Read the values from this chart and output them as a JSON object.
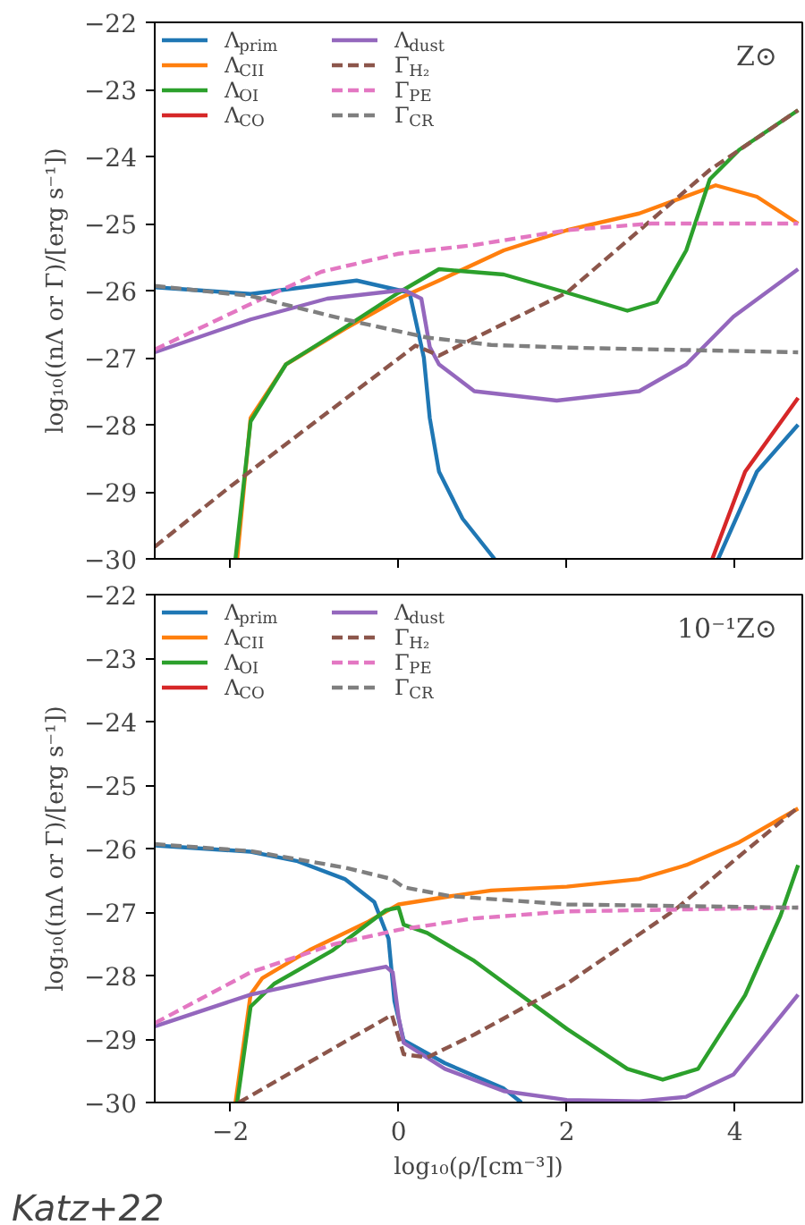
{
  "chart_data": [
    {
      "type": "line",
      "ylabel": "log₁₀((nΛ or Γ)/[erg s⁻¹])",
      "annotations": [
        "Z⊙"
      ],
      "xlim": [
        -2.9,
        4.8
      ],
      "ylim": [
        -30,
        -22
      ],
      "xticks": [
        -2,
        0,
        2,
        4
      ],
      "yticks": [
        -30,
        -29,
        -28,
        -27,
        -26,
        -25,
        -24,
        -23,
        -22
      ],
      "tick_labels": "y",
      "legend": "top left",
      "grid": false,
      "series": [
        {
          "name": "Λ$_{prim}$",
          "color": "#1f77b4",
          "line_style": "solid",
          "x": [
            -2.9,
            -1.76,
            -0.5,
            0.13,
            0.3,
            0.37,
            0.48,
            0.76,
            1.14,
            null,
            3.8,
            4.26,
            4.75
          ],
          "values": [
            -25.95,
            -26.05,
            -25.85,
            -26.03,
            -27.0,
            -27.9,
            -28.7,
            -29.4,
            -30.0,
            null,
            -30.0,
            -28.7,
            -28.0
          ]
        },
        {
          "name": "Λ$_{CII}$",
          "color": "#ff7f0e",
          "line_style": "solid",
          "x": [
            -1.92,
            -1.76,
            -1.34,
            -0.64,
            0,
            0.48,
            1.25,
            2,
            2.86,
            3.77,
            4.26,
            4.75
          ],
          "values": [
            -30.0,
            -27.9,
            -27.1,
            -26.57,
            -26.12,
            -25.85,
            -25.4,
            -25.1,
            -24.85,
            -24.43,
            -24.6,
            -25.0
          ]
        },
        {
          "name": "Λ$_{OI}$",
          "color": "#2ca02c",
          "line_style": "solid",
          "x": [
            -1.94,
            -1.76,
            -1.34,
            -0.64,
            0,
            0.48,
            1.25,
            2,
            2.72,
            3.07,
            3.42,
            3.7,
            4.05,
            4.75
          ],
          "values": [
            -30.0,
            -27.95,
            -27.1,
            -26.55,
            -26.03,
            -25.68,
            -25.76,
            -26.03,
            -26.3,
            -26.17,
            -25.4,
            -24.34,
            -23.9,
            -23.31
          ]
        },
        {
          "name": "Λ$_{CO}$",
          "color": "#d62728",
          "line_style": "solid",
          "x": [
            3.73,
            4.12,
            4.75
          ],
          "values": [
            -30.0,
            -28.7,
            -27.6
          ]
        },
        {
          "name": "Λ$_{dust}$",
          "color": "#9467bd",
          "line_style": "solid",
          "x": [
            -2.9,
            -1.76,
            -0.85,
            0.06,
            0.27,
            0.37,
            0.48,
            0.9,
            1.88,
            2.86,
            3.42,
            3.98,
            4.75
          ],
          "values": [
            -26.92,
            -26.43,
            -26.12,
            -25.99,
            -26.12,
            -26.84,
            -27.1,
            -27.5,
            -27.64,
            -27.5,
            -27.1,
            -26.39,
            -25.68
          ]
        },
        {
          "name": "Γ$_{H₂}$",
          "color": "#8c564b",
          "line_style": "dashed",
          "x": [
            -2.9,
            -2,
            0.2,
            0.48,
            2,
            3.7,
            4.75
          ],
          "values": [
            -29.82,
            -28.92,
            -26.82,
            -26.97,
            -26.03,
            -24.2,
            -23.31
          ]
        },
        {
          "name": "Γ$_{PE}$",
          "color": "#e377c2",
          "line_style": "dashed",
          "x": [
            -2.9,
            -1.76,
            -0.92,
            0,
            0.9,
            2,
            3.0,
            4.75
          ],
          "values": [
            -26.88,
            -26.2,
            -25.72,
            -25.45,
            -25.32,
            -25.1,
            -25.0,
            -25.0
          ]
        },
        {
          "name": "Γ$_{CR}$",
          "color": "#7f7f7f",
          "line_style": "dashed",
          "x": [
            -2.9,
            -1.76,
            -0.64,
            0.34,
            1.1,
            2,
            4.75
          ],
          "values": [
            -25.93,
            -26.08,
            -26.43,
            -26.7,
            -26.81,
            -26.85,
            -26.92
          ]
        }
      ]
    },
    {
      "type": "line",
      "xlabel": "log₁₀(ρ/[cm⁻³])",
      "ylabel": "log₁₀((nΛ or Γ)/[erg s⁻¹])",
      "annotations": [
        "10⁻¹Z⊙",
        "Katz+22"
      ],
      "xlim": [
        -2.9,
        4.8
      ],
      "ylim": [
        -30,
        -22
      ],
      "xticks": [
        -2,
        0,
        2,
        4
      ],
      "yticks": [
        -30,
        -29,
        -28,
        -27,
        -26,
        -25,
        -24,
        -23,
        -22
      ],
      "legend": "top left",
      "grid": false,
      "series": [
        {
          "name": "Λ$_{prim}$",
          "color": "#1f77b4",
          "line_style": "solid",
          "x": [
            -2.9,
            -1.76,
            -1.2,
            -0.64,
            -0.29,
            -0.12,
            -0.05,
            0.06,
            0.55,
            1.25,
            1.46
          ],
          "values": [
            -25.95,
            -26.05,
            -26.2,
            -26.48,
            -26.84,
            -27.42,
            -28.4,
            -29.02,
            -29.38,
            -29.78,
            -30.0
          ]
        },
        {
          "name": "Λ$_{CII}$",
          "color": "#ff7f0e",
          "line_style": "solid",
          "x": [
            -1.94,
            -1.76,
            -1.62,
            -1.06,
            -0.36,
            0,
            0.62,
            1.1,
            2,
            2.86,
            3.42,
            4.05,
            4.75
          ],
          "values": [
            -30.0,
            -28.3,
            -28.04,
            -27.6,
            -27.15,
            -26.88,
            -26.75,
            -26.66,
            -26.6,
            -26.48,
            -26.26,
            -25.9,
            -25.37
          ]
        },
        {
          "name": "Λ$_{OI}$",
          "color": "#2ca02c",
          "line_style": "solid",
          "x": [
            -1.92,
            -1.76,
            -1.48,
            -0.78,
            -0.15,
            0,
            0.06,
            0.34,
            0.9,
            2,
            2.72,
            3.14,
            3.56,
            4.12,
            4.54,
            4.75
          ],
          "values": [
            -30.0,
            -28.49,
            -28.13,
            -27.6,
            -26.97,
            -26.93,
            -27.2,
            -27.33,
            -27.77,
            -28.84,
            -29.47,
            -29.64,
            -29.47,
            -28.31,
            -27.06,
            -26.26
          ]
        },
        {
          "name": "Λ$_{CO}$",
          "color": "#d62728",
          "line_style": "solid"
        },
        {
          "name": "Λ$_{dust}$",
          "color": "#9467bd",
          "line_style": "solid",
          "x": [
            -2.9,
            -1.76,
            -0.85,
            -0.15,
            -0.07,
            0,
            0.06,
            0.55,
            1.25,
            2,
            2.86,
            3.42,
            3.98,
            4.75
          ],
          "values": [
            -28.8,
            -28.3,
            -28.04,
            -27.86,
            -27.95,
            -28.66,
            -29.06,
            -29.47,
            -29.82,
            -29.96,
            -29.98,
            -29.91,
            -29.56,
            -28.3
          ]
        },
        {
          "name": "Γ$_{H₂}$",
          "color": "#8c564b",
          "line_style": "dashed",
          "x": [
            -1.9,
            -0.08,
            0.06,
            0.34,
            0.9,
            2,
            3.28,
            4.75
          ],
          "values": [
            -30.0,
            -28.62,
            -29.24,
            -29.29,
            -28.93,
            -28.13,
            -26.97,
            -25.35
          ]
        },
        {
          "name": "Γ$_{PE}$",
          "color": "#e377c2",
          "line_style": "dashed",
          "x": [
            -2.9,
            -1.76,
            -0.78,
            0,
            0.9,
            2,
            4.75
          ],
          "values": [
            -28.75,
            -27.95,
            -27.51,
            -27.28,
            -27.1,
            -26.99,
            -26.93
          ]
        },
        {
          "name": "Γ$_{CR}$",
          "color": "#7f7f7f",
          "line_style": "dashed",
          "x": [
            -2.9,
            -1.76,
            -0.64,
            -0.08,
            0.06,
            0.62,
            2,
            4.75
          ],
          "values": [
            -25.93,
            -26.04,
            -26.3,
            -26.48,
            -26.61,
            -26.75,
            -26.88,
            -26.93
          ]
        }
      ]
    }
  ]
}
